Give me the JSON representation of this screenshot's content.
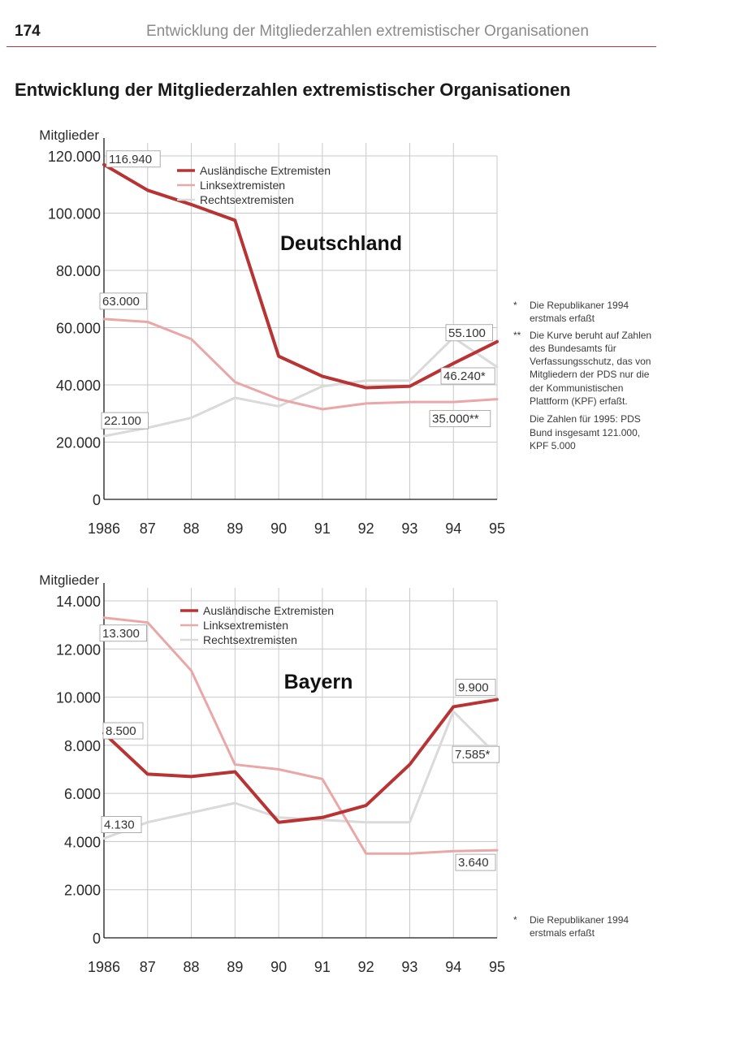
{
  "page": {
    "number": "174",
    "running_head": "Entwicklung der Mitgliederzahlen extremistischer Organisationen",
    "title": "Entwicklung der Mitgliederzahlen extremistischer Organisationen"
  },
  "colors": {
    "auslaendische": "#b83434",
    "links": "#eaa7a7",
    "rechts": "#dadada",
    "grid": "#c8c8c8",
    "axis": "#1a1a1a"
  },
  "chart_data": [
    {
      "type": "line",
      "title": "Deutschland",
      "ylabel": "Mitglieder",
      "ylim": [
        0,
        120000
      ],
      "yticks": [
        0,
        20000,
        40000,
        60000,
        80000,
        100000,
        120000
      ],
      "ytick_labels": [
        "0",
        "20.000",
        "40.000",
        "60.000",
        "80.000",
        "100.000",
        "120.000"
      ],
      "x": [
        1986,
        1987,
        1988,
        1989,
        1990,
        1991,
        1992,
        1993,
        1994,
        1995
      ],
      "xtick_labels": [
        "1986",
        "87",
        "88",
        "89",
        "90",
        "91",
        "92",
        "93",
        "94",
        "95"
      ],
      "grid": true,
      "legend_position": "top-center",
      "series": [
        {
          "name": "Ausländische Extremisten",
          "key": "auslaendische",
          "values": [
            116940,
            108000,
            103000,
            97500,
            50000,
            43000,
            39000,
            39500,
            47500,
            55100
          ]
        },
        {
          "name": "Linksextremisten",
          "key": "links",
          "values": [
            63000,
            62000,
            56000,
            41000,
            35000,
            31500,
            33500,
            34000,
            34000,
            35000
          ]
        },
        {
          "name": "Rechtsextremisten",
          "key": "rechts",
          "values": [
            22100,
            25000,
            28500,
            35500,
            32500,
            39500,
            41500,
            41500,
            56500,
            46240
          ]
        }
      ],
      "annotations": [
        {
          "text": "116.940",
          "series": "auslaendische",
          "x": 1986,
          "y": 116940
        },
        {
          "text": "63.000",
          "series": "links",
          "x": 1986,
          "y": 63000
        },
        {
          "text": "22.100",
          "series": "rechts",
          "x": 1986,
          "y": 22100
        },
        {
          "text": "55.100",
          "series": "auslaendische",
          "x": 1995,
          "y": 55100
        },
        {
          "text": "46.240*",
          "series": "rechts",
          "x": 1995,
          "y": 46240
        },
        {
          "text": "35.000**",
          "series": "links",
          "x": 1995,
          "y": 35000
        }
      ]
    },
    {
      "type": "line",
      "title": "Bayern",
      "ylabel": "Mitglieder",
      "ylim": [
        0,
        14000
      ],
      "yticks": [
        0,
        2000,
        4000,
        6000,
        8000,
        10000,
        12000,
        14000
      ],
      "ytick_labels": [
        "0",
        "2.000",
        "4.000",
        "6.000",
        "8.000",
        "10.000",
        "12.000",
        "14.000"
      ],
      "x": [
        1986,
        1987,
        1988,
        1989,
        1990,
        1991,
        1992,
        1993,
        1994,
        1995
      ],
      "xtick_labels": [
        "1986",
        "87",
        "88",
        "89",
        "90",
        "91",
        "92",
        "93",
        "94",
        "95"
      ],
      "grid": true,
      "legend_position": "top-center",
      "series": [
        {
          "name": "Ausländische Extremisten",
          "key": "auslaendische",
          "values": [
            8500,
            6800,
            6700,
            6900,
            4800,
            5000,
            5500,
            7200,
            9600,
            9900
          ]
        },
        {
          "name": "Linksextremisten",
          "key": "links",
          "values": [
            13300,
            13100,
            11100,
            7200,
            7000,
            6600,
            3500,
            3500,
            3600,
            3640
          ]
        },
        {
          "name": "Rechtsextremisten",
          "key": "rechts",
          "values": [
            4130,
            4800,
            5200,
            5600,
            5000,
            4900,
            4800,
            4800,
            9400,
            7585
          ]
        }
      ],
      "annotations": [
        {
          "text": "13.300",
          "series": "links",
          "x": 1986,
          "y": 13300
        },
        {
          "text": "8.500",
          "series": "auslaendische",
          "x": 1986,
          "y": 8500
        },
        {
          "text": "4.130",
          "series": "rechts",
          "x": 1986,
          "y": 4130
        },
        {
          "text": "9.900",
          "series": "auslaendische",
          "x": 1995,
          "y": 9900
        },
        {
          "text": "7.585*",
          "series": "rechts",
          "x": 1995,
          "y": 7585
        },
        {
          "text": "3.640",
          "series": "links",
          "x": 1995,
          "y": 3640
        }
      ]
    }
  ],
  "footnotes": {
    "deutschland": [
      {
        "mark": "*",
        "text": "Die Republikaner 1994 erstmals erfaßt"
      },
      {
        "mark": "**",
        "text": "Die Kurve beruht auf Zahlen des Bundesamts für Verfassungsschutz, das von Mitgliedern der PDS nur die der Kommunistischen Plattform (KPF) erfaßt."
      }
    ],
    "deutschland_extra": "Die Zahlen für 1995: PDS Bund insgesamt 121.000, KPF 5.000",
    "bayern": [
      {
        "mark": "*",
        "text": "Die Republikaner 1994 erstmals erfaßt"
      }
    ]
  }
}
